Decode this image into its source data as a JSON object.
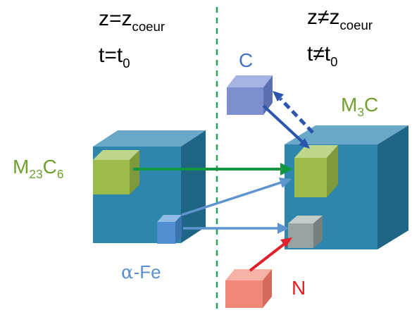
{
  "left_state": {
    "z_prefix": "z=z",
    "z_sub": "coeur",
    "t_prefix": "t=t",
    "t_sub": "0"
  },
  "right_state": {
    "z_prefix": "z≠z",
    "z_sub": "coeur",
    "t_prefix": "t≠t",
    "t_sub": "0"
  },
  "labels": {
    "carbon": "C",
    "nitrogen": "N",
    "m3c_m": "M",
    "m3c_sub": "3",
    "m3c_c": "C",
    "m23c6_m": "M",
    "m23c6_sub1": "23",
    "m23c6_c": "C",
    "m23c6_sub2": "6",
    "fe_alpha": "α",
    "fe_rest": "-Fe"
  },
  "colors": {
    "matrix_front": "#2e86ad",
    "matrix_top": "#6aa8c8",
    "matrix_side": "#1f6585",
    "carbide_green": "#9bbb4a",
    "carbon_blue": "#7e8fcf",
    "fe_blue": "#4f8fd0",
    "nitride_gray": "#97a3a3",
    "nitrogen_red": "#f08878",
    "arrow_green": "#139640",
    "arrow_blue": "#5e95d0",
    "arrow_dark_blue": "#2c55ad",
    "arrow_red": "#e0202a",
    "divider": "#2aa060"
  }
}
